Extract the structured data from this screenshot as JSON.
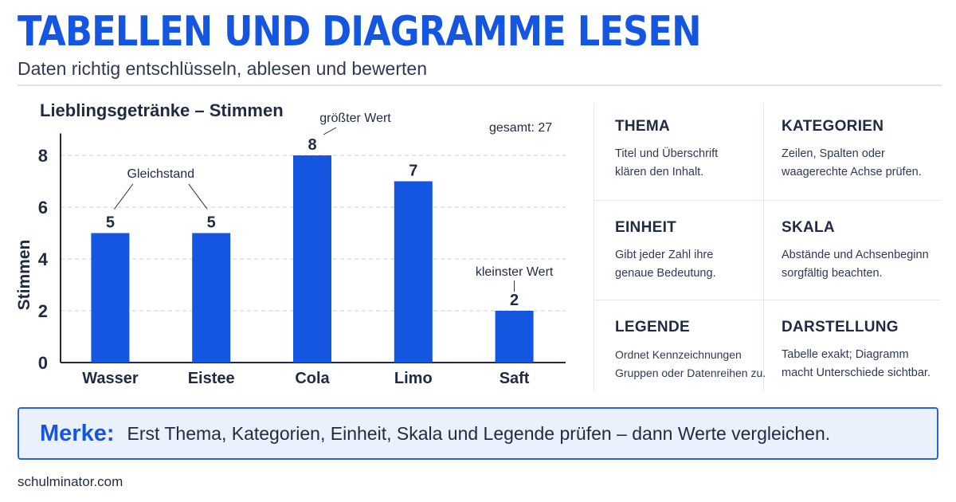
{
  "header": {
    "title": "TABELLEN UND DIAGRAMME LESEN",
    "subtitle": "Daten richtig entschlüsseln, ablesen und bewerten"
  },
  "chart_data": {
    "type": "bar",
    "title": "Lieblingsgetränke – Stimmen",
    "total_label": "gesamt: 27",
    "ylabel": "Stimmen",
    "xlabel": "",
    "categories": [
      "Wasser",
      "Eistee",
      "Cola",
      "Limo",
      "Saft"
    ],
    "values": [
      5,
      5,
      8,
      7,
      2
    ],
    "ylim": [
      0,
      8.6
    ],
    "yticks": [
      0,
      2,
      4,
      6,
      8
    ],
    "grid": "horizontal-dashed",
    "bar_color": "#1456e0",
    "annotations": {
      "tie": "Gleichstand",
      "max": "größter Wert",
      "min": "kleinster Wert"
    }
  },
  "cards": [
    {
      "title": "THEMA",
      "text": "Titel und Überschrift\nklären den Inhalt."
    },
    {
      "title": "KATEGORIEN",
      "text": "Zeilen, Spalten oder\nwaagerechte Achse prüfen."
    },
    {
      "title": "EINHEIT",
      "text": "Gibt jeder Zahl ihre\ngenaue Bedeutung."
    },
    {
      "title": "SKALA",
      "text": "Abstände und Achsenbeginn\nsorgfältig beachten."
    },
    {
      "title": "LEGENDE",
      "text": "Ordnet Kennzeichnungen\nGruppen oder Datenreihen zu."
    },
    {
      "title": "DARSTELLUNG",
      "text": "Tabelle exakt; Diagramm\nmacht Unterschiede sichtbar."
    }
  ],
  "note": {
    "label": "Merke:",
    "text": "Erst Thema, Kategorien, Einheit, Skala und Legende prüfen – dann Werte vergleichen."
  },
  "footer": {
    "text": "schulminator.com"
  },
  "colors": {
    "accent": "#1456e0",
    "note_bg": "#eaf1fd",
    "note_border": "#2a63d6"
  }
}
